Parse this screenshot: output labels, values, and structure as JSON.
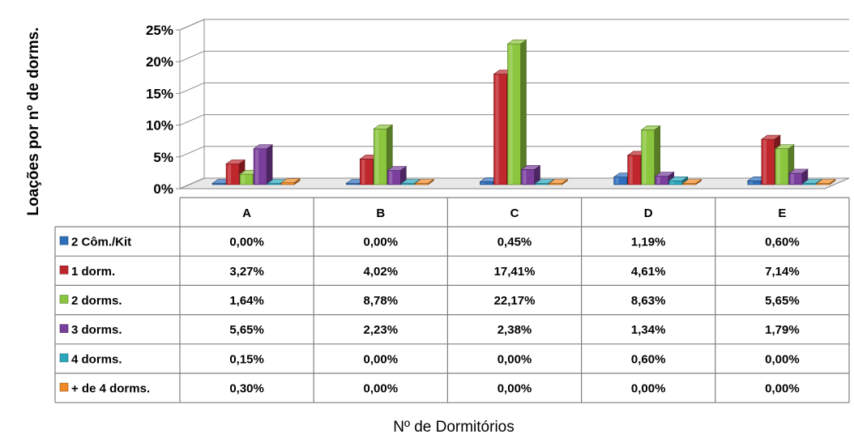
{
  "chart_data": {
    "type": "bar",
    "style": "3d-clustered-column-with-data-table",
    "categories": [
      "A",
      "B",
      "C",
      "D",
      "E"
    ],
    "ylabel": "Loações por nº de dorms.",
    "xlabel": "Nº de Dormitórios",
    "ylim": [
      0,
      25
    ],
    "yticks": [
      "0%",
      "5%",
      "10%",
      "15%",
      "20%",
      "25%"
    ],
    "grid": true,
    "legend": "data-table-rows",
    "series": [
      {
        "name": "2 Côm./Kit",
        "color": "#2E6EBD",
        "values": [
          0.0,
          0.0,
          0.45,
          1.19,
          0.6
        ],
        "labels": [
          "0,00%",
          "0,00%",
          "0,45%",
          "1,19%",
          "0,60%"
        ]
      },
      {
        "name": "1 dorm.",
        "color": "#C0272D",
        "values": [
          3.27,
          4.02,
          17.41,
          4.61,
          7.14
        ],
        "labels": [
          "3,27%",
          "4,02%",
          "17,41%",
          "4,61%",
          "7,14%"
        ]
      },
      {
        "name": "2 dorms.",
        "color": "#8CC63F",
        "values": [
          1.64,
          8.78,
          22.17,
          8.63,
          5.65
        ],
        "labels": [
          "1,64%",
          "8,78%",
          "22,17%",
          "8,63%",
          "5,65%"
        ]
      },
      {
        "name": "3 dorms.",
        "color": "#7A3E9D",
        "values": [
          5.65,
          2.23,
          2.38,
          1.34,
          1.79
        ],
        "labels": [
          "5,65%",
          "2,23%",
          "2,38%",
          "1,34%",
          "1,79%"
        ]
      },
      {
        "name": "4 dorms.",
        "color": "#2AA7BD",
        "values": [
          0.15,
          0.0,
          0.0,
          0.6,
          0.0
        ],
        "labels": [
          "0,15%",
          "0,00%",
          "0,00%",
          "0,60%",
          "0,00%"
        ]
      },
      {
        "name": "+ de 4 dorms.",
        "color": "#F08A24",
        "values": [
          0.3,
          0.0,
          0.0,
          0.0,
          0.0
        ],
        "labels": [
          "0,30%",
          "0,00%",
          "0,00%",
          "0,00%",
          "0,00%"
        ]
      }
    ]
  }
}
